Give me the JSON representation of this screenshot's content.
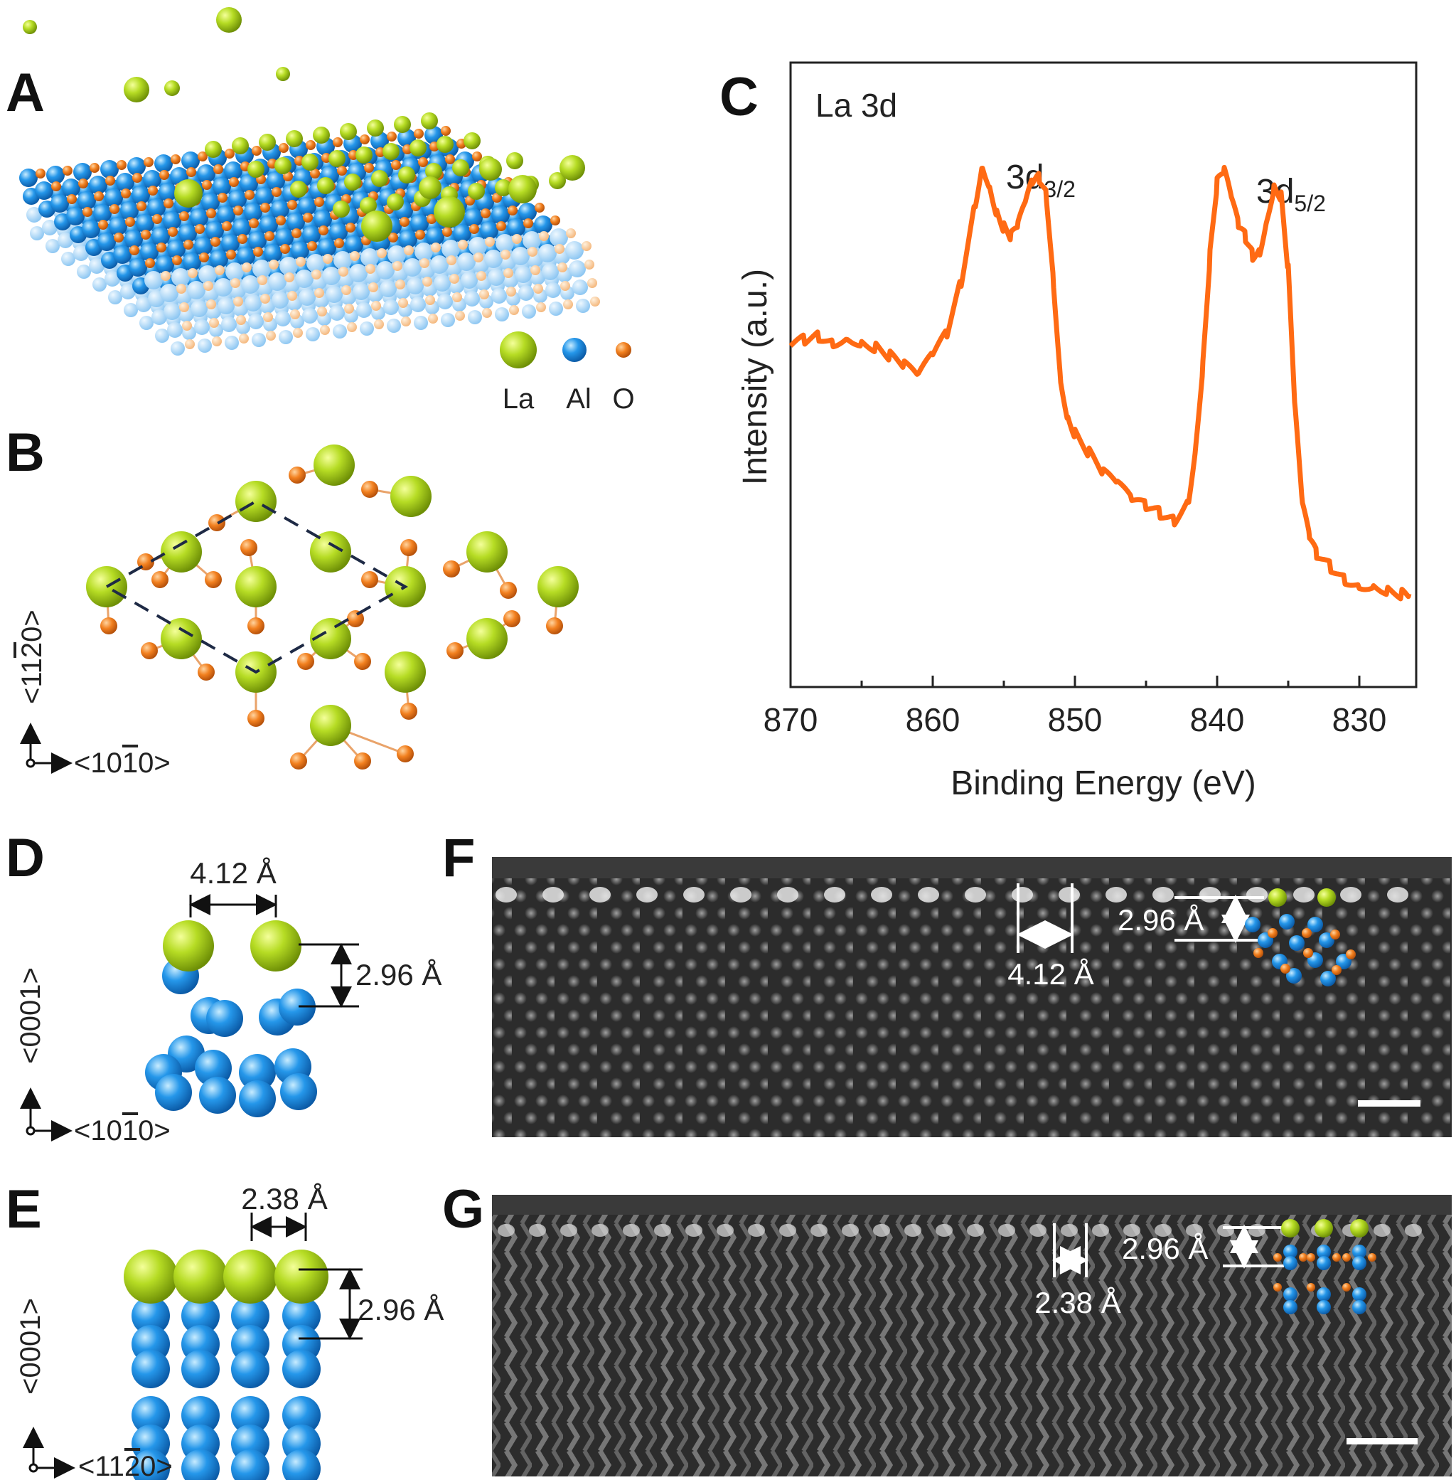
{
  "panels": {
    "a": {
      "label": "A",
      "legend": [
        {
          "label": "La",
          "color": "#a6cc1c"
        },
        {
          "label": "Al",
          "color": "#1e8fe0"
        },
        {
          "label": "O",
          "color": "#ee7a1e"
        }
      ]
    },
    "b": {
      "label": "B",
      "axis_vertical": "<11̅2̅̅>",
      "axis_v_parts": [
        "<11",
        "2",
        "0>"
      ],
      "axis_h_parts": [
        "<10",
        "1",
        "0>"
      ]
    },
    "c": {
      "label": "C",
      "annotation": "La 3d",
      "peak1_main": "3d",
      "peak1_sub": "3/2",
      "peak2_main": "3d",
      "peak2_sub": "5/2"
    },
    "d": {
      "label": "D",
      "spacing_h": "4.12 Å",
      "spacing_v": "2.96 Å",
      "axis_vertical": "<0001>",
      "axis_h_parts": [
        "<10",
        "1",
        "0>"
      ]
    },
    "e": {
      "label": "E",
      "spacing_h": "2.38 Å",
      "spacing_v": "2.96 Å",
      "axis_vertical": "<0001>",
      "axis_h_parts": [
        "<11",
        "2",
        "0>"
      ]
    },
    "f": {
      "label": "F",
      "spacing_h": "4.12 Å",
      "spacing_v": "2.96 Å"
    },
    "g": {
      "label": "G",
      "spacing_h": "2.38 Å",
      "spacing_v": "2.96 Å"
    }
  },
  "colors": {
    "la": "#a6cc1c",
    "al": "#1e8fe0",
    "o": "#ee7a1e",
    "spectrum": "#ff6a13",
    "stem_bg": "#2b2b2b"
  },
  "chart_data": {
    "type": "line",
    "title": "",
    "xlabel": "Binding Energy (eV)",
    "ylabel": "Intensity (a.u.)",
    "xlim": [
      870,
      826
    ],
    "x_reversed": true,
    "xticks": [
      870,
      860,
      850,
      840,
      830
    ],
    "ylim": [
      0,
      1
    ],
    "y_ticks_shown": false,
    "annotations": [
      "La 3d",
      "3d3/2",
      "3d5/2"
    ],
    "series": [
      {
        "x": [
          870,
          869,
          868,
          867,
          866,
          865,
          864,
          863,
          862,
          861,
          860,
          859,
          858,
          857,
          856.5,
          856,
          855.5,
          855,
          854.5,
          854,
          853.5,
          853,
          852.5,
          852,
          851.5,
          851,
          850.5,
          850,
          849,
          848,
          847,
          846,
          845,
          844,
          843,
          842,
          841.5,
          841,
          840.5,
          840,
          839.5,
          839,
          838.5,
          838,
          837.5,
          837,
          836.5,
          836,
          835.5,
          835,
          834.5,
          834,
          833.5,
          833,
          832,
          831,
          830,
          829,
          828,
          827,
          826.5
        ],
        "values": [
          0.58,
          0.59,
          0.6,
          0.59,
          0.6,
          0.59,
          0.58,
          0.56,
          0.54,
          0.52,
          0.56,
          0.6,
          0.7,
          0.85,
          0.92,
          0.88,
          0.83,
          0.8,
          0.78,
          0.8,
          0.84,
          0.88,
          0.89,
          0.86,
          0.7,
          0.52,
          0.45,
          0.42,
          0.38,
          0.34,
          0.32,
          0.29,
          0.28,
          0.27,
          0.26,
          0.3,
          0.4,
          0.55,
          0.75,
          0.88,
          0.9,
          0.85,
          0.8,
          0.78,
          0.75,
          0.76,
          0.82,
          0.88,
          0.86,
          0.72,
          0.45,
          0.28,
          0.22,
          0.19,
          0.17,
          0.15,
          0.14,
          0.14,
          0.13,
          0.12,
          0.12
        ]
      }
    ]
  }
}
